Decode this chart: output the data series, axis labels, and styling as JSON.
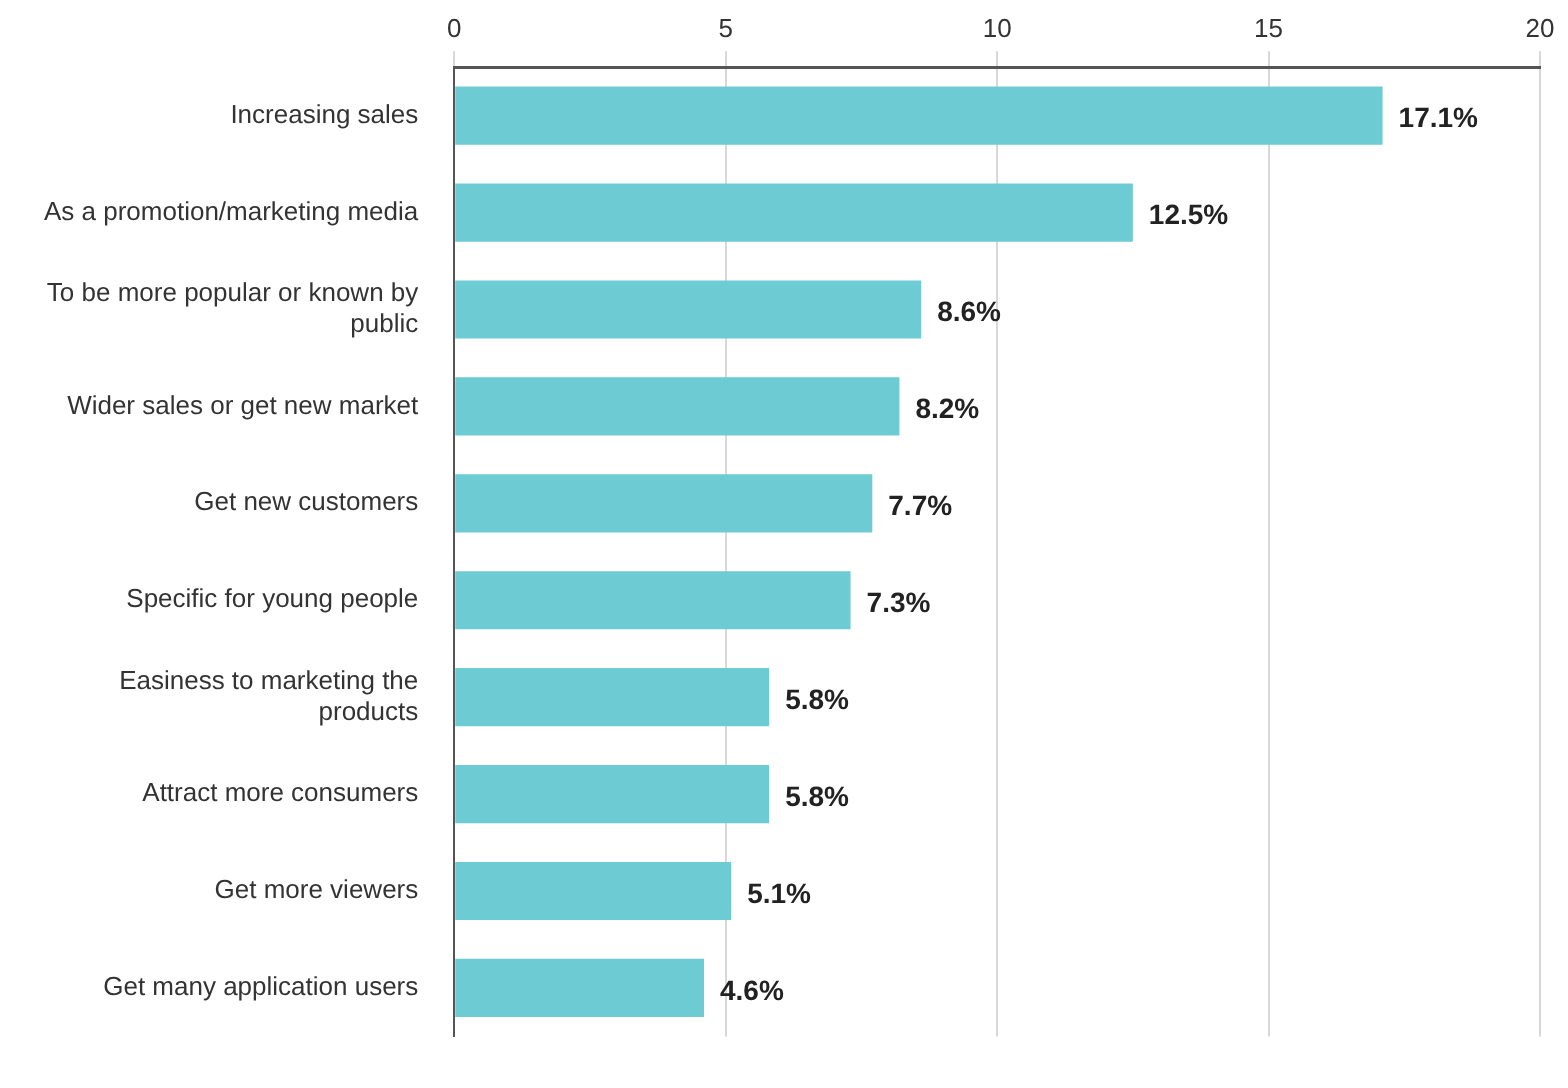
{
  "chart_data": {
    "type": "bar",
    "orientation": "horizontal",
    "categories": [
      "Increasing sales",
      "As a promotion/marketing media",
      "To be more popular or known by public",
      "Wider sales or get new market",
      "Get new customers",
      "Specific for young people",
      "Easiness to marketing the products",
      "Attract more consumers",
      "Get more viewers",
      "Get many application users"
    ],
    "values": [
      17.1,
      12.5,
      8.6,
      8.2,
      7.7,
      7.3,
      5.8,
      5.8,
      5.1,
      4.6
    ],
    "value_labels": [
      "17.1%",
      "12.5%",
      "8.6%",
      "8.2%",
      "7.7%",
      "7.3%",
      "5.8%",
      "5.8%",
      "5.1%",
      "4.6%"
    ],
    "color": "#6ccbd3",
    "xlim": [
      0,
      20
    ],
    "xticks": [
      0,
      5,
      10,
      15,
      20
    ],
    "grid": "x",
    "legend": false
  }
}
